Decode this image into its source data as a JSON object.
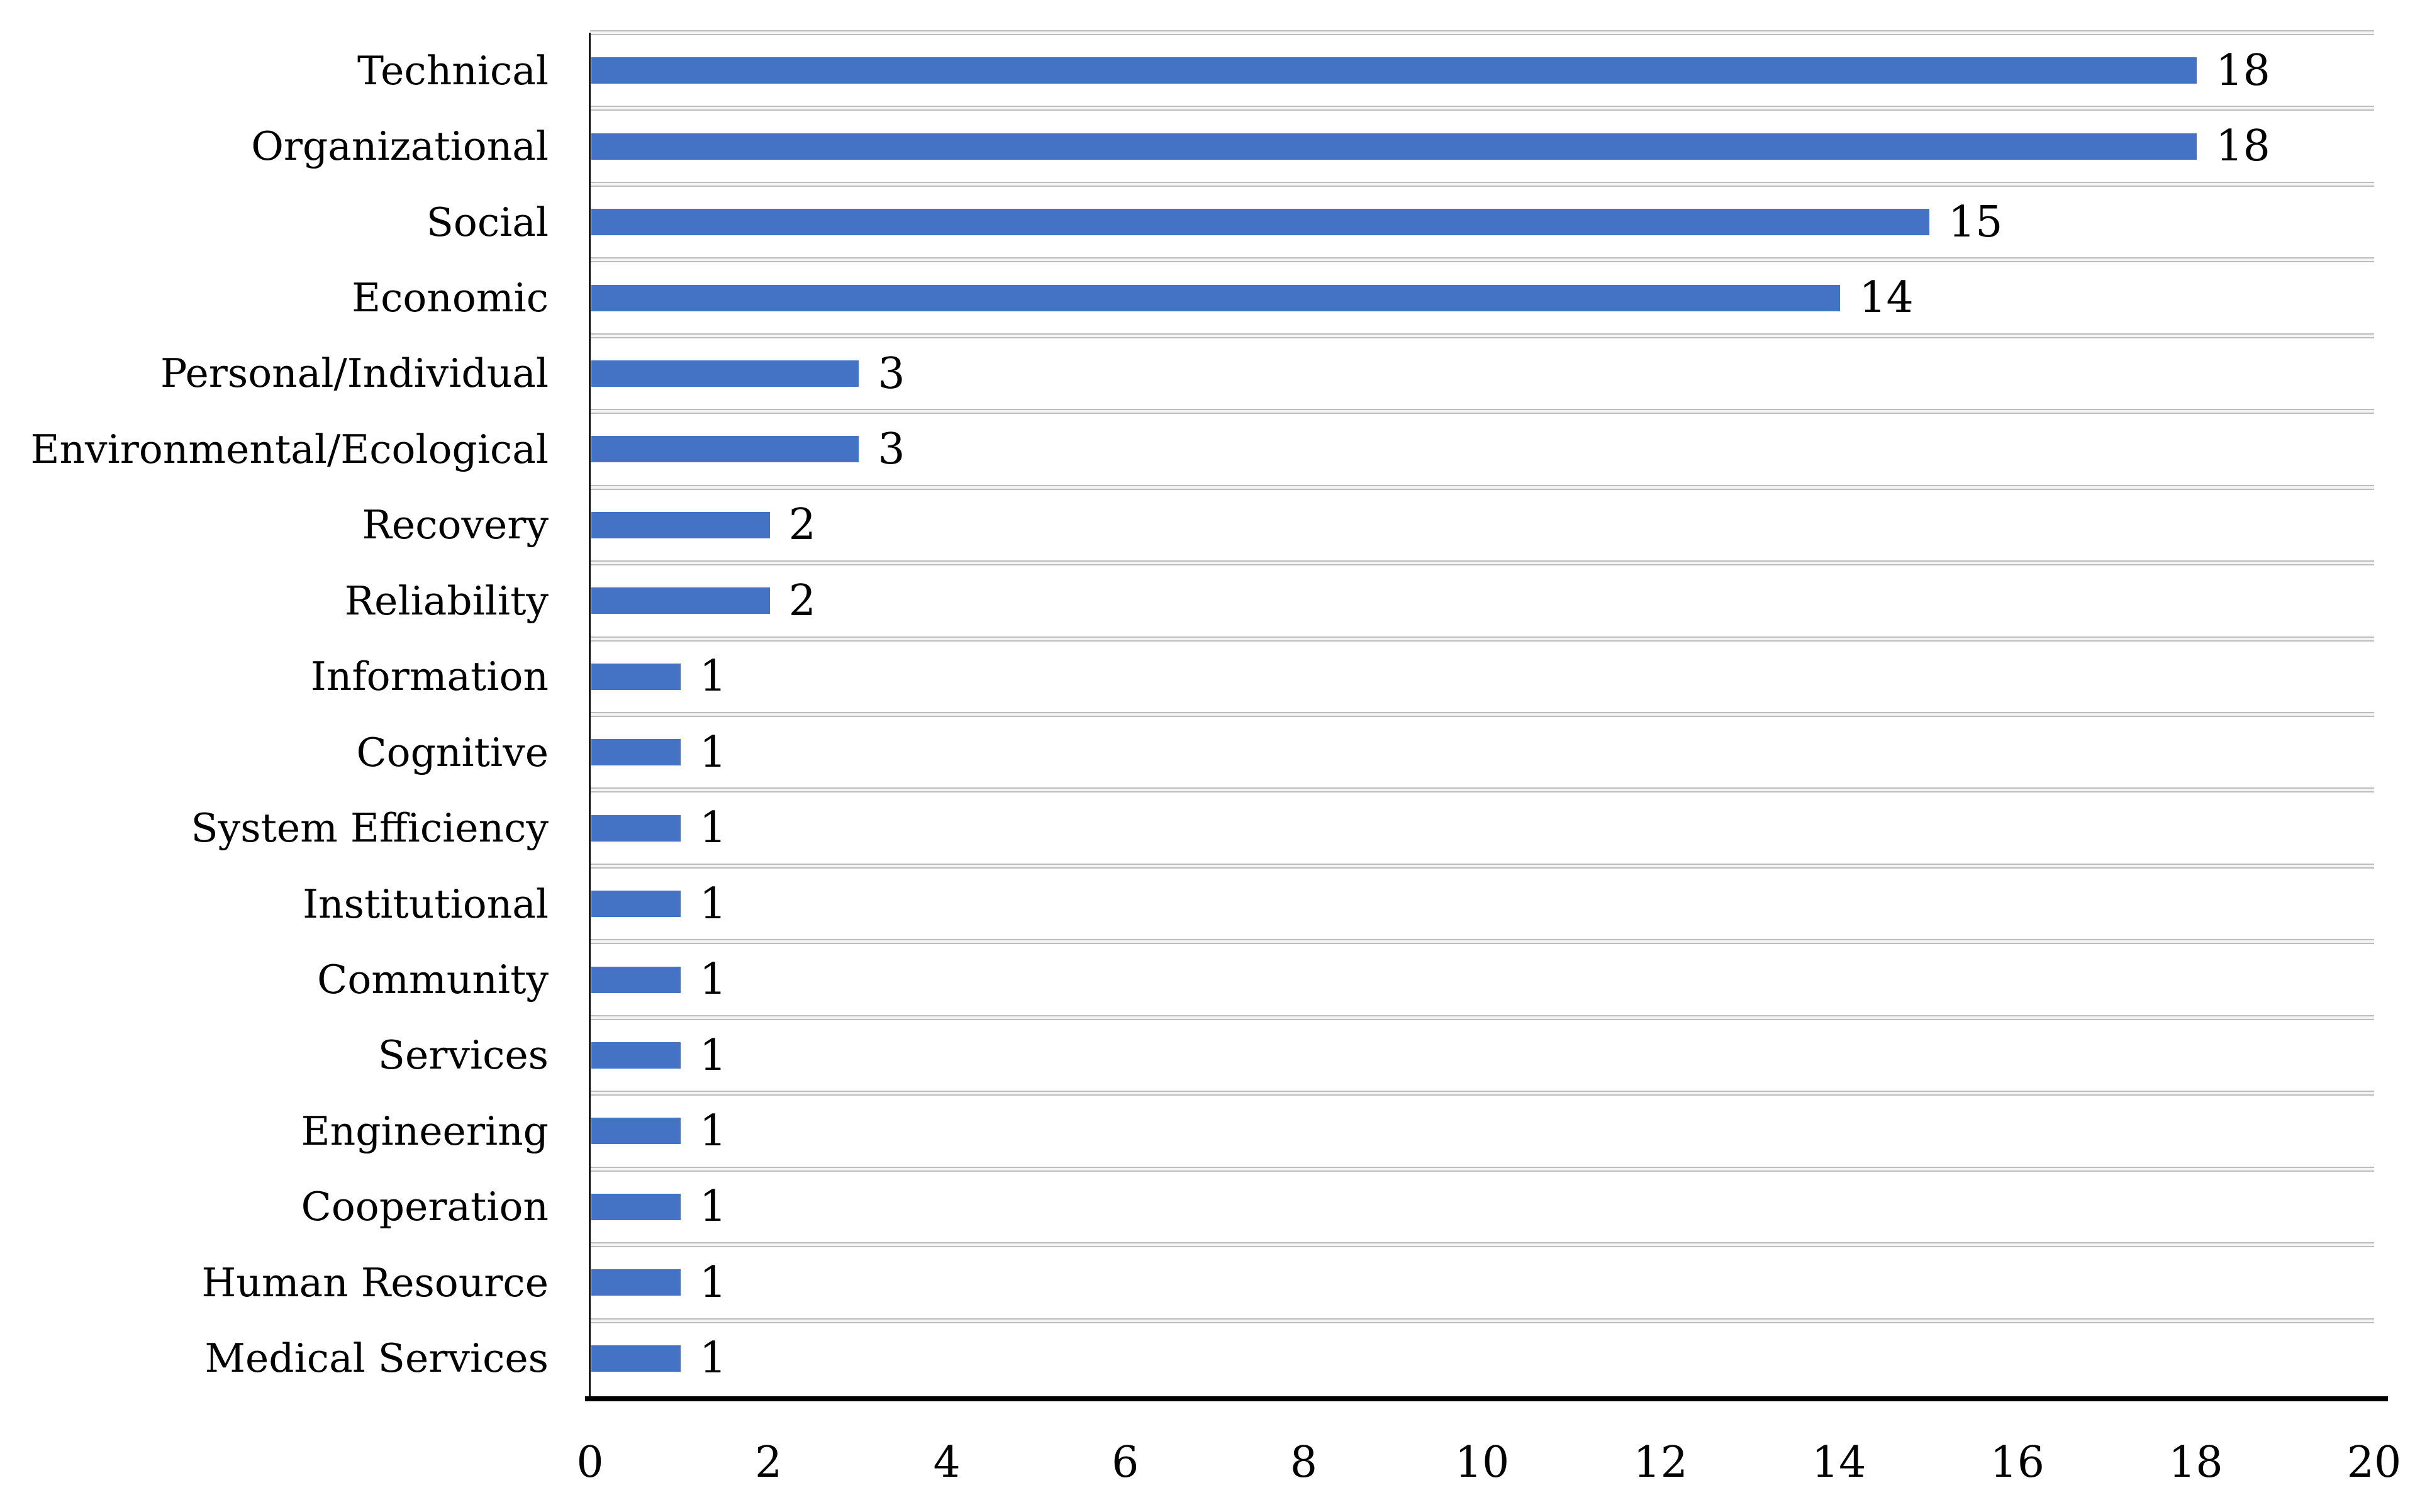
{
  "chart_data": {
    "type": "bar",
    "orientation": "horizontal",
    "title": "",
    "xlabel": "",
    "ylabel": "",
    "categories": [
      "Technical",
      "Organizational",
      "Social",
      "Economic",
      "Personal/Individual",
      "Environmental/Ecological",
      "Recovery",
      "Reliability",
      "Information",
      "Cognitive",
      "System Efficiency",
      "Institutional",
      "Community",
      "Services",
      "Engineering",
      "Cooperation",
      "Human Resource",
      "Medical Services"
    ],
    "values": [
      18,
      18,
      15,
      14,
      3,
      3,
      2,
      2,
      1,
      1,
      1,
      1,
      1,
      1,
      1,
      1,
      1,
      1
    ],
    "data_labels": [
      "18",
      "18",
      "15",
      "14",
      "3",
      "3",
      "2",
      "2",
      "1",
      "1",
      "1",
      "1",
      "1",
      "1",
      "1",
      "1",
      "1",
      "1"
    ],
    "xlim": [
      0,
      20
    ],
    "xticks": [
      "0",
      "2",
      "4",
      "6",
      "8",
      "10",
      "12",
      "14",
      "16",
      "18",
      "20"
    ],
    "grid": "horizontal category-boundary gridlines",
    "legend": "none",
    "colors": {
      "bar": "#4472C4",
      "gridline_edge": "#bdbdbd",
      "gridline_fill": "#f4f4f4",
      "axis_line": "#000000",
      "text": "#000000",
      "background": "#ffffff"
    }
  }
}
